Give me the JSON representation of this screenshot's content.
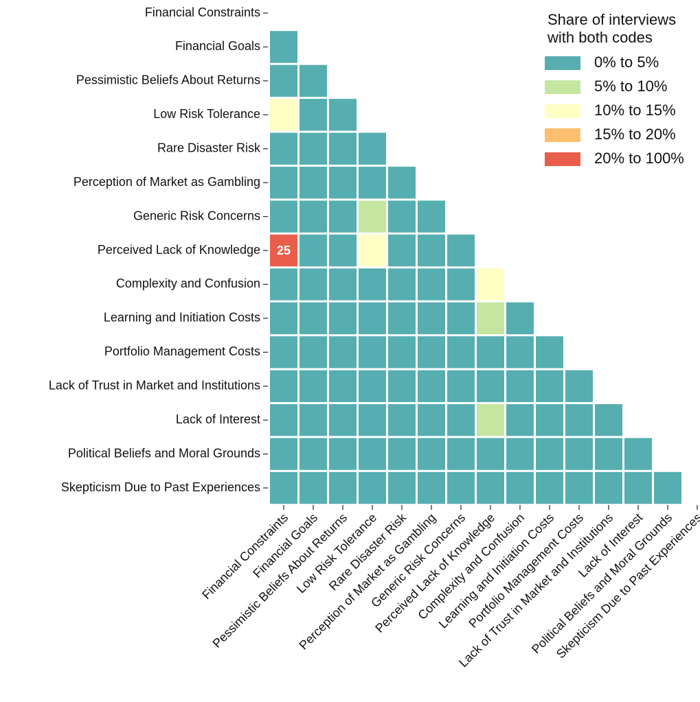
{
  "chart_data": {
    "type": "heatmap",
    "categories": [
      "Financial Constraints",
      "Financial Goals",
      "Pessimistic Beliefs About Returns",
      "Low Risk Tolerance",
      "Rare Disaster Risk",
      "Perception of Market as Gambling",
      "Generic Risk Concerns",
      "Perceived Lack of Knowledge",
      "Complexity and Confusion",
      "Learning and Initiation Costs",
      "Portfolio Management Costs",
      "Lack of Trust in Market and Institutions",
      "Lack of Interest",
      "Political Beliefs and Moral Grounds",
      "Skepticism Due to Past Experiences"
    ],
    "matrix": [
      [
        null,
        null,
        null,
        null,
        null,
        null,
        null,
        null,
        null,
        null,
        null,
        null,
        null,
        null,
        null
      ],
      [
        2,
        null,
        null,
        null,
        null,
        null,
        null,
        null,
        null,
        null,
        null,
        null,
        null,
        null,
        null
      ],
      [
        2,
        2,
        null,
        null,
        null,
        null,
        null,
        null,
        null,
        null,
        null,
        null,
        null,
        null,
        null
      ],
      [
        12,
        2,
        2,
        null,
        null,
        null,
        null,
        null,
        null,
        null,
        null,
        null,
        null,
        null,
        null
      ],
      [
        2,
        2,
        2,
        2,
        null,
        null,
        null,
        null,
        null,
        null,
        null,
        null,
        null,
        null,
        null
      ],
      [
        2,
        2,
        2,
        2,
        2,
        null,
        null,
        null,
        null,
        null,
        null,
        null,
        null,
        null,
        null
      ],
      [
        2,
        2,
        2,
        7,
        2,
        2,
        null,
        null,
        null,
        null,
        null,
        null,
        null,
        null,
        null
      ],
      [
        25,
        2,
        2,
        12,
        2,
        2,
        2,
        null,
        null,
        null,
        null,
        null,
        null,
        null,
        null
      ],
      [
        2,
        2,
        2,
        2,
        2,
        2,
        2,
        12,
        null,
        null,
        null,
        null,
        null,
        null,
        null
      ],
      [
        2,
        2,
        2,
        2,
        2,
        2,
        2,
        7,
        2,
        null,
        null,
        null,
        null,
        null,
        null
      ],
      [
        2,
        2,
        2,
        2,
        2,
        2,
        2,
        2,
        2,
        2,
        null,
        null,
        null,
        null,
        null
      ],
      [
        2,
        2,
        2,
        2,
        2,
        2,
        2,
        2,
        2,
        2,
        2,
        null,
        null,
        null,
        null
      ],
      [
        2,
        2,
        2,
        2,
        2,
        2,
        2,
        7,
        2,
        2,
        2,
        2,
        null,
        null,
        null
      ],
      [
        2,
        2,
        2,
        2,
        2,
        2,
        2,
        2,
        2,
        2,
        2,
        2,
        2,
        null,
        null
      ],
      [
        2,
        2,
        2,
        2,
        2,
        2,
        2,
        2,
        2,
        2,
        2,
        2,
        2,
        2,
        null
      ]
    ],
    "value_labels": [
      [
        null,
        null,
        null,
        null,
        null,
        null,
        null,
        null,
        null,
        null,
        null,
        null,
        null,
        null,
        null
      ],
      [
        null,
        null,
        null,
        null,
        null,
        null,
        null,
        null,
        null,
        null,
        null,
        null,
        null,
        null,
        null
      ],
      [
        null,
        null,
        null,
        null,
        null,
        null,
        null,
        null,
        null,
        null,
        null,
        null,
        null,
        null,
        null
      ],
      [
        null,
        null,
        null,
        null,
        null,
        null,
        null,
        null,
        null,
        null,
        null,
        null,
        null,
        null,
        null
      ],
      [
        null,
        null,
        null,
        null,
        null,
        null,
        null,
        null,
        null,
        null,
        null,
        null,
        null,
        null,
        null
      ],
      [
        null,
        null,
        null,
        null,
        null,
        null,
        null,
        null,
        null,
        null,
        null,
        null,
        null,
        null,
        null
      ],
      [
        null,
        null,
        null,
        null,
        null,
        null,
        null,
        null,
        null,
        null,
        null,
        null,
        null,
        null,
        null
      ],
      [
        "25",
        null,
        null,
        null,
        null,
        null,
        null,
        null,
        null,
        null,
        null,
        null,
        null,
        null,
        null
      ],
      [
        null,
        null,
        null,
        null,
        null,
        null,
        null,
        null,
        null,
        null,
        null,
        null,
        null,
        null,
        null
      ],
      [
        null,
        null,
        null,
        null,
        null,
        null,
        null,
        null,
        null,
        null,
        null,
        null,
        null,
        null,
        null
      ],
      [
        null,
        null,
        null,
        null,
        null,
        null,
        null,
        null,
        null,
        null,
        null,
        null,
        null,
        null,
        null
      ],
      [
        null,
        null,
        null,
        null,
        null,
        null,
        null,
        null,
        null,
        null,
        null,
        null,
        null,
        null,
        null
      ],
      [
        null,
        null,
        null,
        null,
        null,
        null,
        null,
        null,
        null,
        null,
        null,
        null,
        null,
        null,
        null
      ],
      [
        null,
        null,
        null,
        null,
        null,
        null,
        null,
        null,
        null,
        null,
        null,
        null,
        null,
        null,
        null
      ],
      [
        null,
        null,
        null,
        null,
        null,
        null,
        null,
        null,
        null,
        null,
        null,
        null,
        null,
        null,
        null
      ]
    ],
    "bins": [
      0,
      5,
      10,
      15,
      20,
      100
    ],
    "colors": [
      "#56aeb0",
      "#c5e6a1",
      "#ffffc5",
      "#fdbf6f",
      "#e95e4b"
    ],
    "legend_title": [
      "Share of interviews",
      "with both codes"
    ],
    "legend_labels": [
      "0% to 5%",
      "5% to 10%",
      "10% to 15%",
      "15% to 20%",
      "20% to 100%"
    ],
    "legend_position": "upper right"
  }
}
